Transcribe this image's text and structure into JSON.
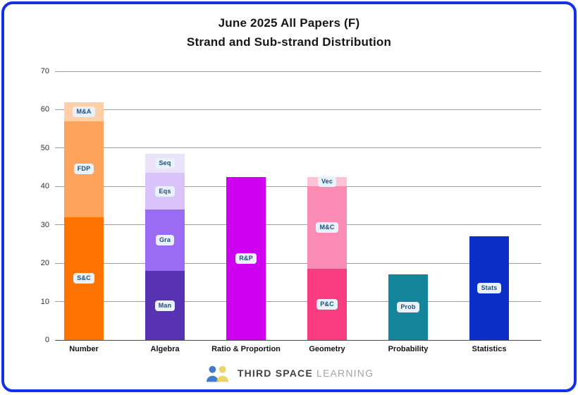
{
  "card": {
    "title_line1": "June 2025 All Papers (F)",
    "title_line2": "Strand and Sub-strand Distribution"
  },
  "chart_data": {
    "type": "bar",
    "subtype": "stacked-vertical",
    "title": "June 2025 All Papers (F) Strand and Sub-strand Distribution",
    "xlabel": "",
    "ylabel": "",
    "ylim": [
      0,
      70
    ],
    "yticks": [
      0,
      10,
      20,
      30,
      40,
      50,
      60,
      70
    ],
    "grid": "horizontal",
    "legend": "none",
    "categories": [
      "Number",
      "Algebra",
      "Ratio & Proportion",
      "Geometry",
      "Probability",
      "Statistics"
    ],
    "segments_order": "bottom-to-top",
    "bars": [
      {
        "category": "Number",
        "segments": [
          {
            "label": "S&C",
            "value": 32,
            "color": "#ff7301"
          },
          {
            "label": "FDP",
            "value": 25,
            "color": "#fda35b"
          },
          {
            "label": "M&A",
            "value": 5,
            "color": "#ffd0a8"
          }
        ]
      },
      {
        "category": "Algebra",
        "segments": [
          {
            "label": "Man",
            "value": 18,
            "color": "#5733b1"
          },
          {
            "label": "Gra",
            "value": 16,
            "color": "#9b6bf3"
          },
          {
            "label": "Eqs",
            "value": 9.5,
            "color": "#d9c3fa"
          },
          {
            "label": "Seq",
            "value": 5,
            "color": "#eae3f9"
          }
        ]
      },
      {
        "category": "Ratio & Proportion",
        "segments": [
          {
            "label": "R&P",
            "value": 42.5,
            "color": "#cf00ef"
          }
        ]
      },
      {
        "category": "Geometry",
        "segments": [
          {
            "label": "P&C",
            "value": 18.5,
            "color": "#fa3d80"
          },
          {
            "label": "M&C",
            "value": 21.5,
            "color": "#fb8db4"
          },
          {
            "label": "Vec",
            "value": 2.5,
            "color": "#fdc3d4"
          }
        ]
      },
      {
        "category": "Probability",
        "segments": [
          {
            "label": "Prob",
            "value": 17,
            "color": "#14859b"
          }
        ]
      },
      {
        "category": "Statistics",
        "segments": [
          {
            "label": "Stats",
            "value": 27,
            "color": "#0b2fc7"
          }
        ]
      }
    ],
    "segment_label_style": {
      "background": "#e9f1fc",
      "text_color": "#1d4e79"
    }
  },
  "footer": {
    "brand_bold": "THIRD SPACE",
    "brand_light": "LEARNING"
  },
  "colors": {
    "card_border": "#1130e8",
    "gridline": "#9e9e9e",
    "baseline": "#4a4a4a",
    "title_text": "#15151c",
    "tick_text": "#2e2e2e"
  }
}
